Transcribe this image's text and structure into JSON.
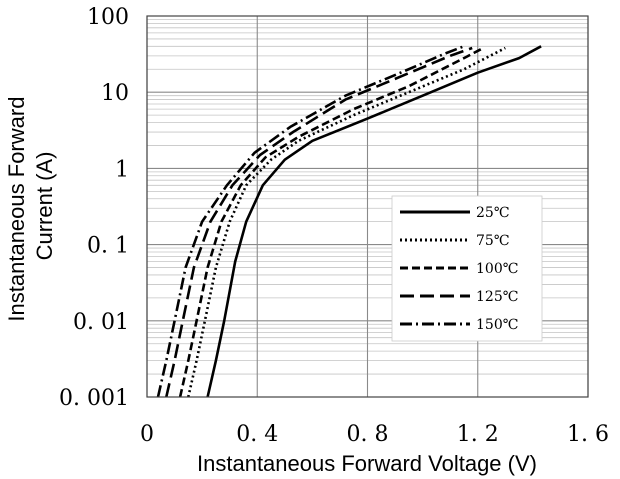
{
  "chart_data": {
    "type": "line",
    "title": "",
    "xlabel": "Instantaneous Forward Voltage (V)",
    "ylabel_lines": [
      "Instantaneous Forward",
      "Current (A)"
    ],
    "x_scale": "linear",
    "y_scale": "log",
    "xlim": [
      0,
      1.6
    ],
    "ylim": [
      0.001,
      100
    ],
    "x_ticks": [
      0,
      0.4,
      0.8,
      1.2,
      1.6
    ],
    "x_tick_labels": [
      "0",
      "0. 4",
      "0. 8",
      "1. 2",
      "1. 6"
    ],
    "y_ticks": [
      0.001,
      0.01,
      0.1,
      1,
      10,
      100
    ],
    "y_tick_labels": [
      "0. 001",
      "0. 01",
      "0. 1",
      "1",
      "10",
      "100"
    ],
    "grid": true,
    "legend_position": "right",
    "series": [
      {
        "name": "25℃",
        "dash": "solid",
        "points": [
          [
            0.22,
            0.001
          ],
          [
            0.25,
            0.003
          ],
          [
            0.28,
            0.01
          ],
          [
            0.32,
            0.06
          ],
          [
            0.36,
            0.2
          ],
          [
            0.42,
            0.6
          ],
          [
            0.5,
            1.3
          ],
          [
            0.6,
            2.3
          ],
          [
            0.8,
            4.5
          ],
          [
            1.0,
            9
          ],
          [
            1.2,
            18
          ],
          [
            1.35,
            28
          ],
          [
            1.43,
            40
          ]
        ]
      },
      {
        "name": "75℃",
        "dash": "dot",
        "points": [
          [
            0.15,
            0.001
          ],
          [
            0.18,
            0.003
          ],
          [
            0.21,
            0.01
          ],
          [
            0.25,
            0.05
          ],
          [
            0.3,
            0.2
          ],
          [
            0.36,
            0.6
          ],
          [
            0.45,
            1.3
          ],
          [
            0.55,
            2.3
          ],
          [
            0.75,
            5
          ],
          [
            0.95,
            10
          ],
          [
            1.15,
            20
          ],
          [
            1.3,
            38
          ]
        ]
      },
      {
        "name": "100℃",
        "dash": "dash",
        "points": [
          [
            0.12,
            0.001
          ],
          [
            0.15,
            0.003
          ],
          [
            0.18,
            0.01
          ],
          [
            0.22,
            0.05
          ],
          [
            0.27,
            0.2
          ],
          [
            0.34,
            0.6
          ],
          [
            0.43,
            1.4
          ],
          [
            0.55,
            2.6
          ],
          [
            0.75,
            6
          ],
          [
            0.95,
            12
          ],
          [
            1.15,
            28
          ],
          [
            1.22,
            38
          ]
        ]
      },
      {
        "name": "125℃",
        "dash": "longdash",
        "points": [
          [
            0.07,
            0.001
          ],
          [
            0.1,
            0.003
          ],
          [
            0.13,
            0.01
          ],
          [
            0.17,
            0.05
          ],
          [
            0.23,
            0.2
          ],
          [
            0.31,
            0.6
          ],
          [
            0.41,
            1.5
          ],
          [
            0.53,
            3
          ],
          [
            0.72,
            8
          ],
          [
            0.92,
            16
          ],
          [
            1.1,
            30
          ],
          [
            1.18,
            38
          ]
        ]
      },
      {
        "name": "150℃",
        "dash": "dashdot",
        "points": [
          [
            0.04,
            0.001
          ],
          [
            0.07,
            0.003
          ],
          [
            0.1,
            0.01
          ],
          [
            0.14,
            0.05
          ],
          [
            0.2,
            0.2
          ],
          [
            0.29,
            0.6
          ],
          [
            0.39,
            1.6
          ],
          [
            0.52,
            3.5
          ],
          [
            0.72,
            9
          ],
          [
            0.92,
            18
          ],
          [
            1.08,
            32
          ],
          [
            1.15,
            40
          ]
        ]
      }
    ]
  }
}
